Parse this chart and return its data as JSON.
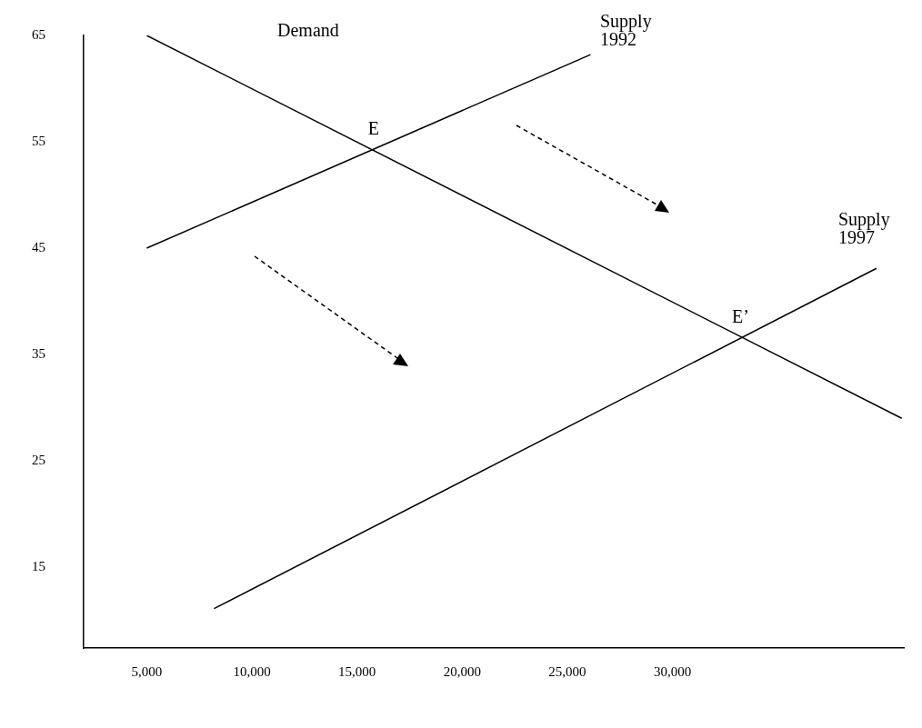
{
  "chart_data": {
    "type": "line",
    "xlim": [
      2000,
      41000
    ],
    "xticks": [
      {
        "value": 5000,
        "label": "5,000"
      },
      {
        "value": 10000,
        "label": "10,000"
      },
      {
        "value": 15000,
        "label": "15,000"
      },
      {
        "value": 20000,
        "label": "20,000"
      },
      {
        "value": 25000,
        "label": "25,000"
      },
      {
        "value": 30000,
        "label": "30,000"
      }
    ],
    "ylim": [
      7.4,
      65
    ],
    "yticks": [
      15,
      25,
      35,
      45,
      55,
      65
    ],
    "grid": false,
    "legend": false,
    "marker": "none",
    "line_style": "solid",
    "series": [
      {
        "color": "#000000",
        "x": [
          5000,
          40900
        ],
        "values": [
          65,
          29
        ]
      },
      {
        "color": "#000000",
        "x": [
          5000,
          26100
        ],
        "values": [
          45,
          63.2
        ]
      },
      {
        "color": "#000000",
        "x": [
          8200,
          39700
        ],
        "values": [
          11.1,
          43.1
        ]
      }
    ],
    "annotations": [
      "Demand",
      "Supply\n1992",
      {
        "text": "E",
        "x": 15700,
        "y": 54.3
      },
      {
        "text": "E’",
        "x": 33300,
        "y": 36.6
      },
      "Supply\n1997"
    ]
  }
}
